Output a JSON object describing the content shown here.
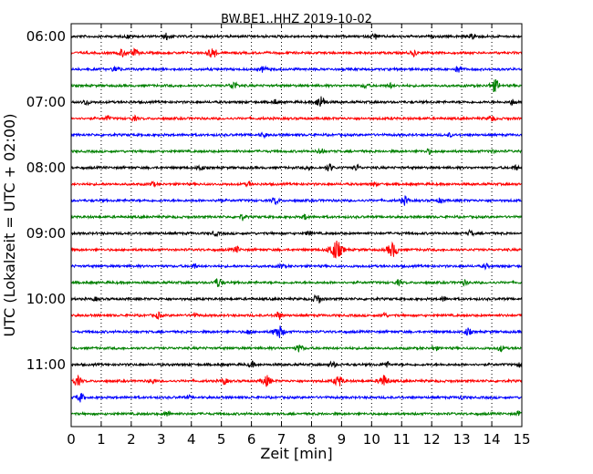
{
  "chart_data": {
    "type": "line",
    "title": "BW.BE1..HHZ 2019-10-02",
    "xlabel": "Zeit  [min]",
    "ylabel": "UTC (Lokalzeit = UTC + 02:00)",
    "xlim": [
      0,
      15
    ],
    "xticks": [
      "0",
      "1",
      "2",
      "3",
      "4",
      "5",
      "6",
      "7",
      "8",
      "9",
      "10",
      "11",
      "12",
      "13",
      "14",
      "15"
    ],
    "ytick_labels": [
      "06:00",
      "07:00",
      "08:00",
      "09:00",
      "10:00",
      "11:00"
    ],
    "grid": true,
    "trace_start_minutes": 360,
    "trace_interval_minutes": 15,
    "trace_colors": [
      "#000000",
      "#ff0000",
      "#0000ff",
      "#008000"
    ],
    "traces": [
      {
        "start": "06:00",
        "events": [
          [
            3.2,
            0.6
          ],
          [
            10.1,
            0.5
          ],
          [
            13.4,
            0.6
          ],
          [
            1.9,
            0.3
          ]
        ]
      },
      {
        "start": "06:15",
        "events": [
          [
            1.7,
            0.7
          ],
          [
            2.1,
            0.6
          ],
          [
            4.7,
            0.9
          ],
          [
            11.4,
            0.5
          ]
        ]
      },
      {
        "start": "06:30",
        "events": [
          [
            1.5,
            0.6
          ],
          [
            6.4,
            0.5
          ],
          [
            12.9,
            0.6
          ]
        ]
      },
      {
        "start": "06:45",
        "events": [
          [
            5.4,
            0.7
          ],
          [
            14.1,
            1.0
          ],
          [
            9.8,
            0.4
          ],
          [
            10.6,
            0.4
          ]
        ]
      },
      {
        "start": "07:00",
        "events": [
          [
            0.5,
            0.5
          ],
          [
            8.3,
            1.0
          ],
          [
            6.8,
            0.4
          ],
          [
            14.7,
            0.5
          ]
        ]
      },
      {
        "start": "07:15",
        "events": [
          [
            1.2,
            0.4
          ],
          [
            2.1,
            0.4
          ],
          [
            14.0,
            0.5
          ]
        ]
      },
      {
        "start": "07:30",
        "events": [
          [
            6.4,
            0.4
          ],
          [
            12.6,
            0.3
          ]
        ]
      },
      {
        "start": "07:45",
        "events": [
          [
            8.3,
            0.5
          ],
          [
            11.9,
            0.4
          ],
          [
            14.0,
            0.3
          ]
        ]
      },
      {
        "start": "08:00",
        "events": [
          [
            4.3,
            0.5
          ],
          [
            7.9,
            0.4
          ],
          [
            8.6,
            0.6
          ],
          [
            9.5,
            0.5
          ],
          [
            14.8,
            0.4
          ]
        ]
      },
      {
        "start": "08:15",
        "events": [
          [
            2.7,
            0.4
          ],
          [
            5.9,
            0.4
          ],
          [
            10.1,
            0.3
          ]
        ]
      },
      {
        "start": "08:30",
        "events": [
          [
            6.8,
            0.6
          ],
          [
            11.1,
            0.7
          ],
          [
            4.9,
            0.3
          ],
          [
            12.3,
            0.4
          ]
        ]
      },
      {
        "start": "08:45",
        "events": [
          [
            5.7,
            0.5
          ],
          [
            7.8,
            0.4
          ]
        ]
      },
      {
        "start": "09:00",
        "events": [
          [
            4.8,
            0.4
          ],
          [
            7.9,
            0.4
          ],
          [
            13.3,
            0.5
          ]
        ]
      },
      {
        "start": "09:15",
        "events": [
          [
            8.8,
            1.6
          ],
          [
            10.7,
            1.2
          ],
          [
            5.5,
            0.5
          ]
        ]
      },
      {
        "start": "09:30",
        "events": [
          [
            4.1,
            0.4
          ],
          [
            7.0,
            0.4
          ],
          [
            13.8,
            0.4
          ]
        ]
      },
      {
        "start": "09:45",
        "events": [
          [
            4.9,
            0.8
          ],
          [
            10.9,
            0.4
          ],
          [
            13.1,
            0.4
          ]
        ]
      },
      {
        "start": "10:00",
        "events": [
          [
            8.2,
            0.8
          ],
          [
            0.8,
            0.3
          ],
          [
            12.4,
            0.4
          ]
        ]
      },
      {
        "start": "10:15",
        "events": [
          [
            2.9,
            0.5
          ],
          [
            4.1,
            0.4
          ],
          [
            6.9,
            0.6
          ],
          [
            10.4,
            0.5
          ]
        ]
      },
      {
        "start": "10:30",
        "events": [
          [
            6.9,
            1.1
          ],
          [
            5.9,
            0.4
          ],
          [
            13.2,
            0.6
          ]
        ]
      },
      {
        "start": "10:45",
        "events": [
          [
            7.6,
            0.6
          ],
          [
            12.1,
            0.4
          ],
          [
            14.3,
            0.5
          ]
        ]
      },
      {
        "start": "11:00",
        "events": [
          [
            6.0,
            0.5
          ],
          [
            8.7,
            0.5
          ],
          [
            10.5,
            0.5
          ],
          [
            15.0,
            0.6
          ]
        ]
      },
      {
        "start": "11:15",
        "events": [
          [
            0.2,
            0.8
          ],
          [
            6.5,
            0.9
          ],
          [
            8.9,
            0.9
          ],
          [
            10.4,
            1.0
          ],
          [
            5.1,
            0.5
          ],
          [
            2.7,
            0.4
          ]
        ]
      },
      {
        "start": "11:30",
        "events": [
          [
            0.3,
            0.7
          ],
          [
            3.9,
            0.3
          ],
          [
            13.0,
            0.3
          ]
        ]
      },
      {
        "start": "11:45",
        "events": [
          [
            3.2,
            0.5
          ],
          [
            14.9,
            0.4
          ]
        ]
      }
    ]
  }
}
